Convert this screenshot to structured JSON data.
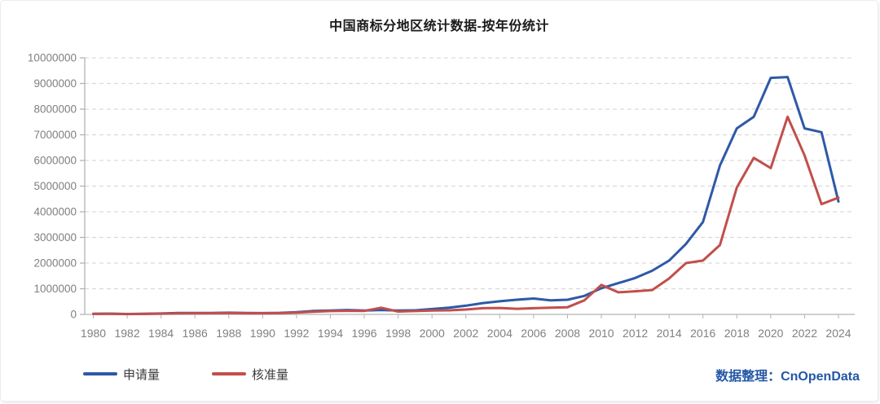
{
  "card": {
    "title": "中国商标分地区统计数据-按年份统计",
    "source_label": "数据整理：CnOpenData"
  },
  "colors": {
    "applications_line": "#2e59a7",
    "approvals_line": "#c14f4c",
    "gridline": "#d9d9d9",
    "axis": "#b3b3b3",
    "tick_text": "#808080",
    "source_text": "#2457a6"
  },
  "chart_data": {
    "type": "line",
    "title": "中国商标分地区统计数据-按年份统计",
    "xlabel": "",
    "ylabel": "",
    "ylim": [
      0,
      10000000
    ],
    "y_tick_step": 1000000,
    "grid": "horizontal-dashed",
    "legend_position": "bottom-left",
    "x": [
      1980,
      1981,
      1982,
      1983,
      1984,
      1985,
      1986,
      1987,
      1988,
      1989,
      1990,
      1991,
      1992,
      1993,
      1994,
      1995,
      1996,
      1997,
      1998,
      1999,
      2000,
      2001,
      2002,
      2003,
      2004,
      2005,
      2006,
      2007,
      2008,
      2009,
      2010,
      2011,
      2012,
      2013,
      2014,
      2015,
      2016,
      2017,
      2018,
      2019,
      2020,
      2021,
      2022,
      2023,
      2024
    ],
    "x_tick_labels": [
      "1980",
      "1982",
      "1984",
      "1986",
      "1988",
      "1990",
      "1992",
      "1994",
      "1996",
      "1998",
      "2000",
      "2002",
      "2004",
      "2006",
      "2008",
      "2010",
      "2012",
      "2014",
      "2016",
      "2018",
      "2020",
      "2022",
      "2024"
    ],
    "y_tick_labels": [
      "0",
      "1000000",
      "2000000",
      "3000000",
      "4000000",
      "5000000",
      "6000000",
      "7000000",
      "8000000",
      "9000000",
      "10000000"
    ],
    "series": [
      {
        "name": "申请量",
        "key": "applications",
        "color": "#2e59a7",
        "values": [
          26000,
          29000,
          17000,
          23000,
          34000,
          53000,
          56000,
          58000,
          66000,
          55000,
          51000,
          59000,
          88000,
          132000,
          153000,
          173000,
          151000,
          170000,
          152000,
          160000,
          210000,
          261000,
          340000,
          440000,
          510000,
          570000,
          620000,
          545000,
          570000,
          720000,
          1020000,
          1220000,
          1420000,
          1700000,
          2100000,
          2750000,
          3600000,
          5800000,
          7250000,
          7700000,
          9220000,
          9250000,
          7250000,
          7100000,
          4400000
        ]
      },
      {
        "name": "核准量",
        "key": "approvals",
        "color": "#c14f4c",
        "values": [
          20000,
          23000,
          14000,
          19000,
          27000,
          40000,
          44000,
          47000,
          53000,
          46000,
          43000,
          50000,
          70000,
          105000,
          130000,
          140000,
          135000,
          260000,
          110000,
          130000,
          150000,
          160000,
          190000,
          240000,
          250000,
          220000,
          240000,
          260000,
          280000,
          550000,
          1150000,
          860000,
          900000,
          950000,
          1400000,
          2000000,
          2100000,
          2700000,
          4950000,
          6100000,
          5700000,
          7700000,
          6200000,
          4300000,
          4550000
        ]
      }
    ]
  }
}
